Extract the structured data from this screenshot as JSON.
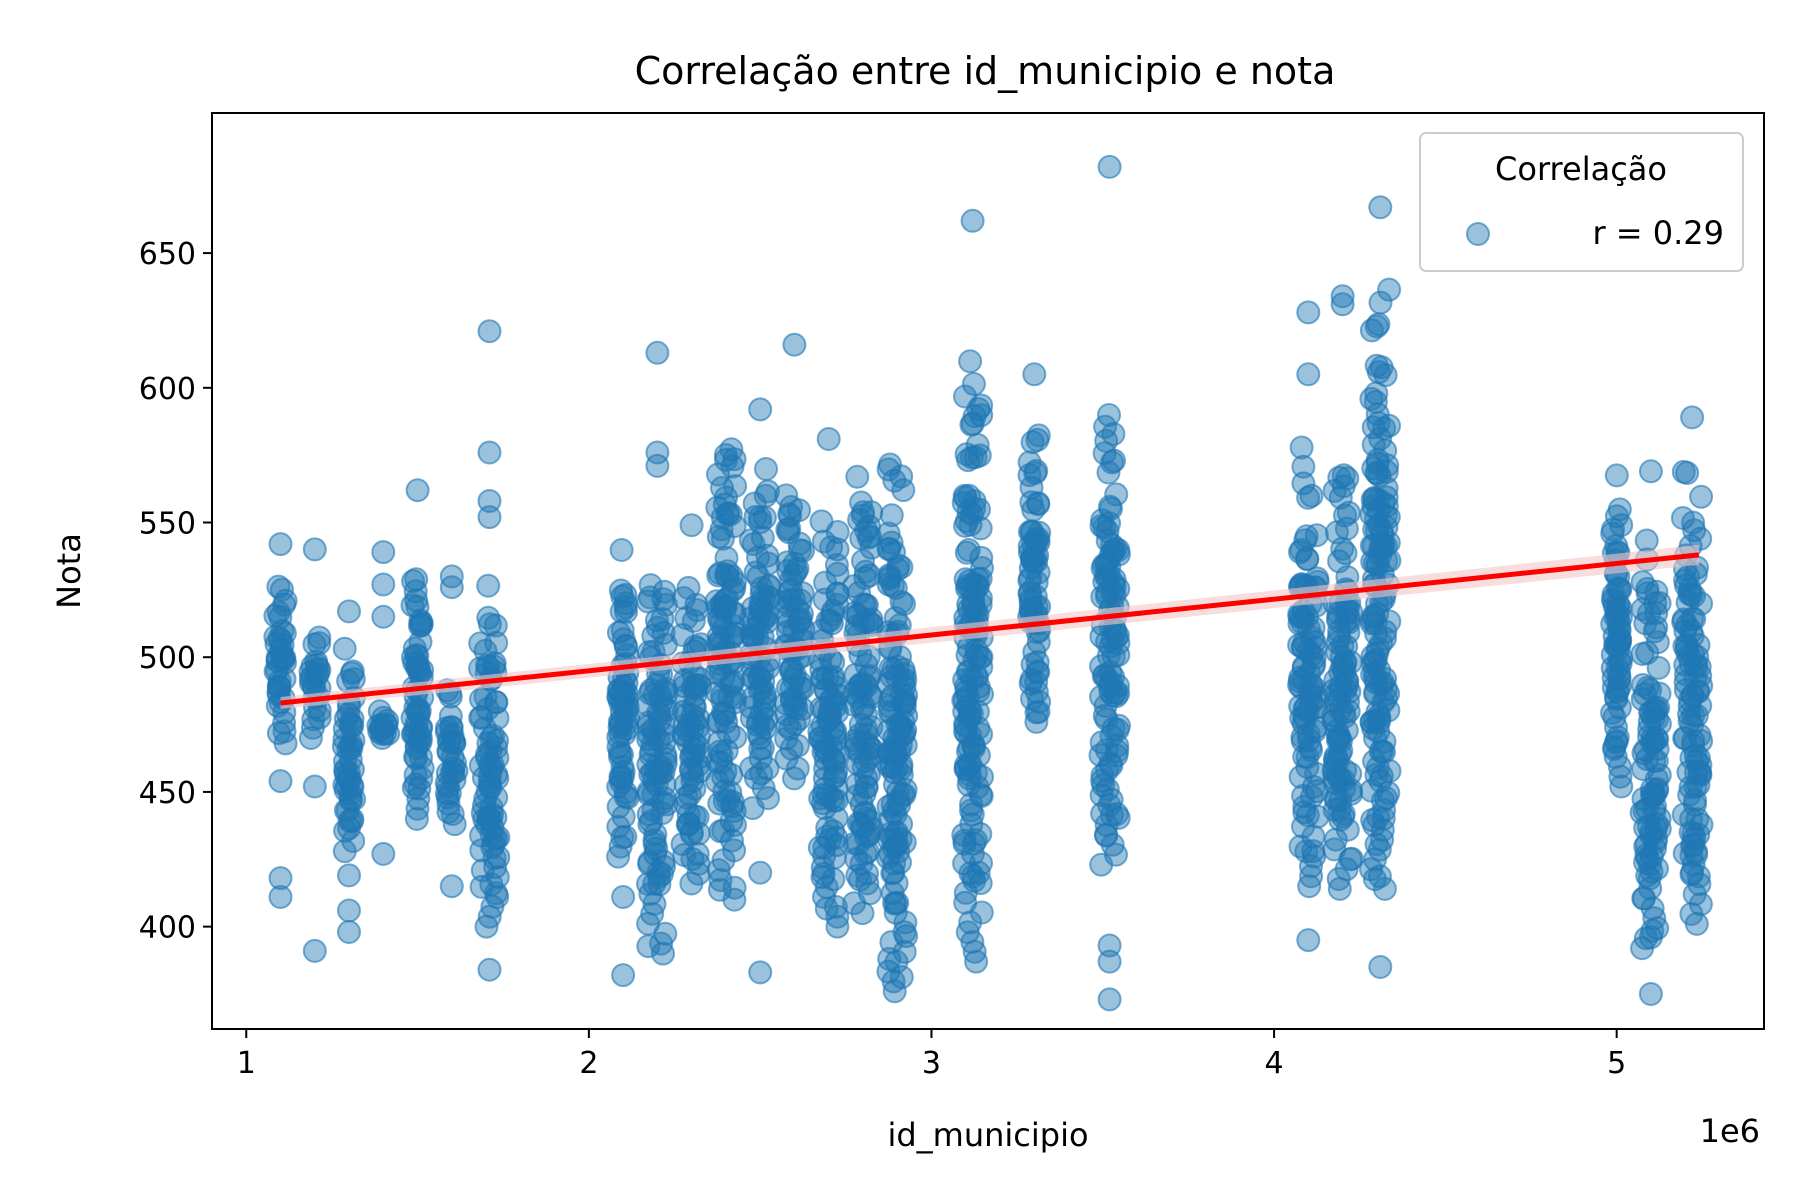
{
  "chart_data": {
    "type": "scatter",
    "title": "Correlação entre id_municipio e nota",
    "xlabel": "id_municipio",
    "ylabel": "Nota",
    "x_multiplier_label": "1e6",
    "xlim": [
      0.9,
      5.43
    ],
    "ylim": [
      362,
      702
    ],
    "xticks": [
      1,
      2,
      3,
      4,
      5
    ],
    "yticks": [
      400,
      450,
      500,
      550,
      600,
      650
    ],
    "grid": false,
    "legend": {
      "title": "Correlação",
      "placement": "top-right",
      "entries": [
        "r = 0.29"
      ]
    },
    "colors": {
      "points": "#1f77b4",
      "regression": "#ff0000",
      "ci_band": "#f4c7c7"
    },
    "regression": {
      "x": [
        1.1,
        5.24
      ],
      "y": [
        483,
        538
      ]
    },
    "series": [
      {
        "name": "r = 0.29",
        "clusters": [
          {
            "x": 1.1,
            "ymin": 468,
            "ymax": 535,
            "outliers": [
              542,
              411,
              418,
              454
            ]
          },
          {
            "x": 1.2,
            "ymin": 470,
            "ymax": 511,
            "outliers": [
              540,
              452,
              391
            ]
          },
          {
            "x": 1.3,
            "ymin": 428,
            "ymax": 510,
            "outliers": [
              517,
              419,
              406,
              398
            ]
          },
          {
            "x": 1.4,
            "ymin": 470,
            "ymax": 480,
            "outliers": [
              539,
              527,
              515,
              427
            ]
          },
          {
            "x": 1.5,
            "ymin": 440,
            "ymax": 540,
            "outliers": [
              562
            ]
          },
          {
            "x": 1.6,
            "ymin": 438,
            "ymax": 492,
            "outliers": [
              530,
              526,
              474,
              415
            ]
          },
          {
            "x": 1.71,
            "ymin": 400,
            "ymax": 532,
            "outliers": [
              621,
              576,
              558,
              552,
              384
            ]
          },
          {
            "x": 2.1,
            "ymin": 426,
            "ymax": 540,
            "outliers": [
              411,
              382
            ]
          },
          {
            "x": 2.2,
            "ymin": 390,
            "ymax": 550,
            "outliers": [
              613,
              576,
              571
            ]
          },
          {
            "x": 2.3,
            "ymin": 416,
            "ymax": 538,
            "outliers": [
              549
            ]
          },
          {
            "x": 2.4,
            "ymin": 410,
            "ymax": 593,
            "outliers": []
          },
          {
            "x": 2.5,
            "ymin": 444,
            "ymax": 580,
            "outliers": [
              592,
              420,
              383
            ]
          },
          {
            "x": 2.6,
            "ymin": 455,
            "ymax": 578,
            "outliers": [
              616
            ]
          },
          {
            "x": 2.7,
            "ymin": 400,
            "ymax": 565,
            "outliers": [
              581
            ]
          },
          {
            "x": 2.8,
            "ymin": 405,
            "ymax": 580,
            "outliers": []
          },
          {
            "x": 2.9,
            "ymin": 376,
            "ymax": 592,
            "outliers": []
          },
          {
            "x": 3.12,
            "ymin": 387,
            "ymax": 627,
            "outliers": [
              662
            ]
          },
          {
            "x": 3.3,
            "ymin": 476,
            "ymax": 590,
            "outliers": [
              605
            ]
          },
          {
            "x": 3.52,
            "ymin": 423,
            "ymax": 604,
            "outliers": [
              682,
              393,
              387,
              373
            ]
          },
          {
            "x": 4.1,
            "ymin": 415,
            "ymax": 584,
            "outliers": [
              628,
              605,
              395
            ]
          },
          {
            "x": 4.2,
            "ymin": 414,
            "ymax": 591,
            "outliers": [
              634,
              631
            ]
          },
          {
            "x": 4.31,
            "ymin": 414,
            "ymax": 651,
            "outliers": [
              667,
              385
            ]
          },
          {
            "x": 5.0,
            "ymin": 452,
            "ymax": 568,
            "outliers": []
          },
          {
            "x": 5.1,
            "ymin": 392,
            "ymax": 549,
            "outliers": [
              569,
              396,
              375
            ]
          },
          {
            "x": 5.22,
            "ymin": 401,
            "ymax": 576,
            "outliers": [
              589,
              420
            ]
          }
        ]
      }
    ]
  }
}
